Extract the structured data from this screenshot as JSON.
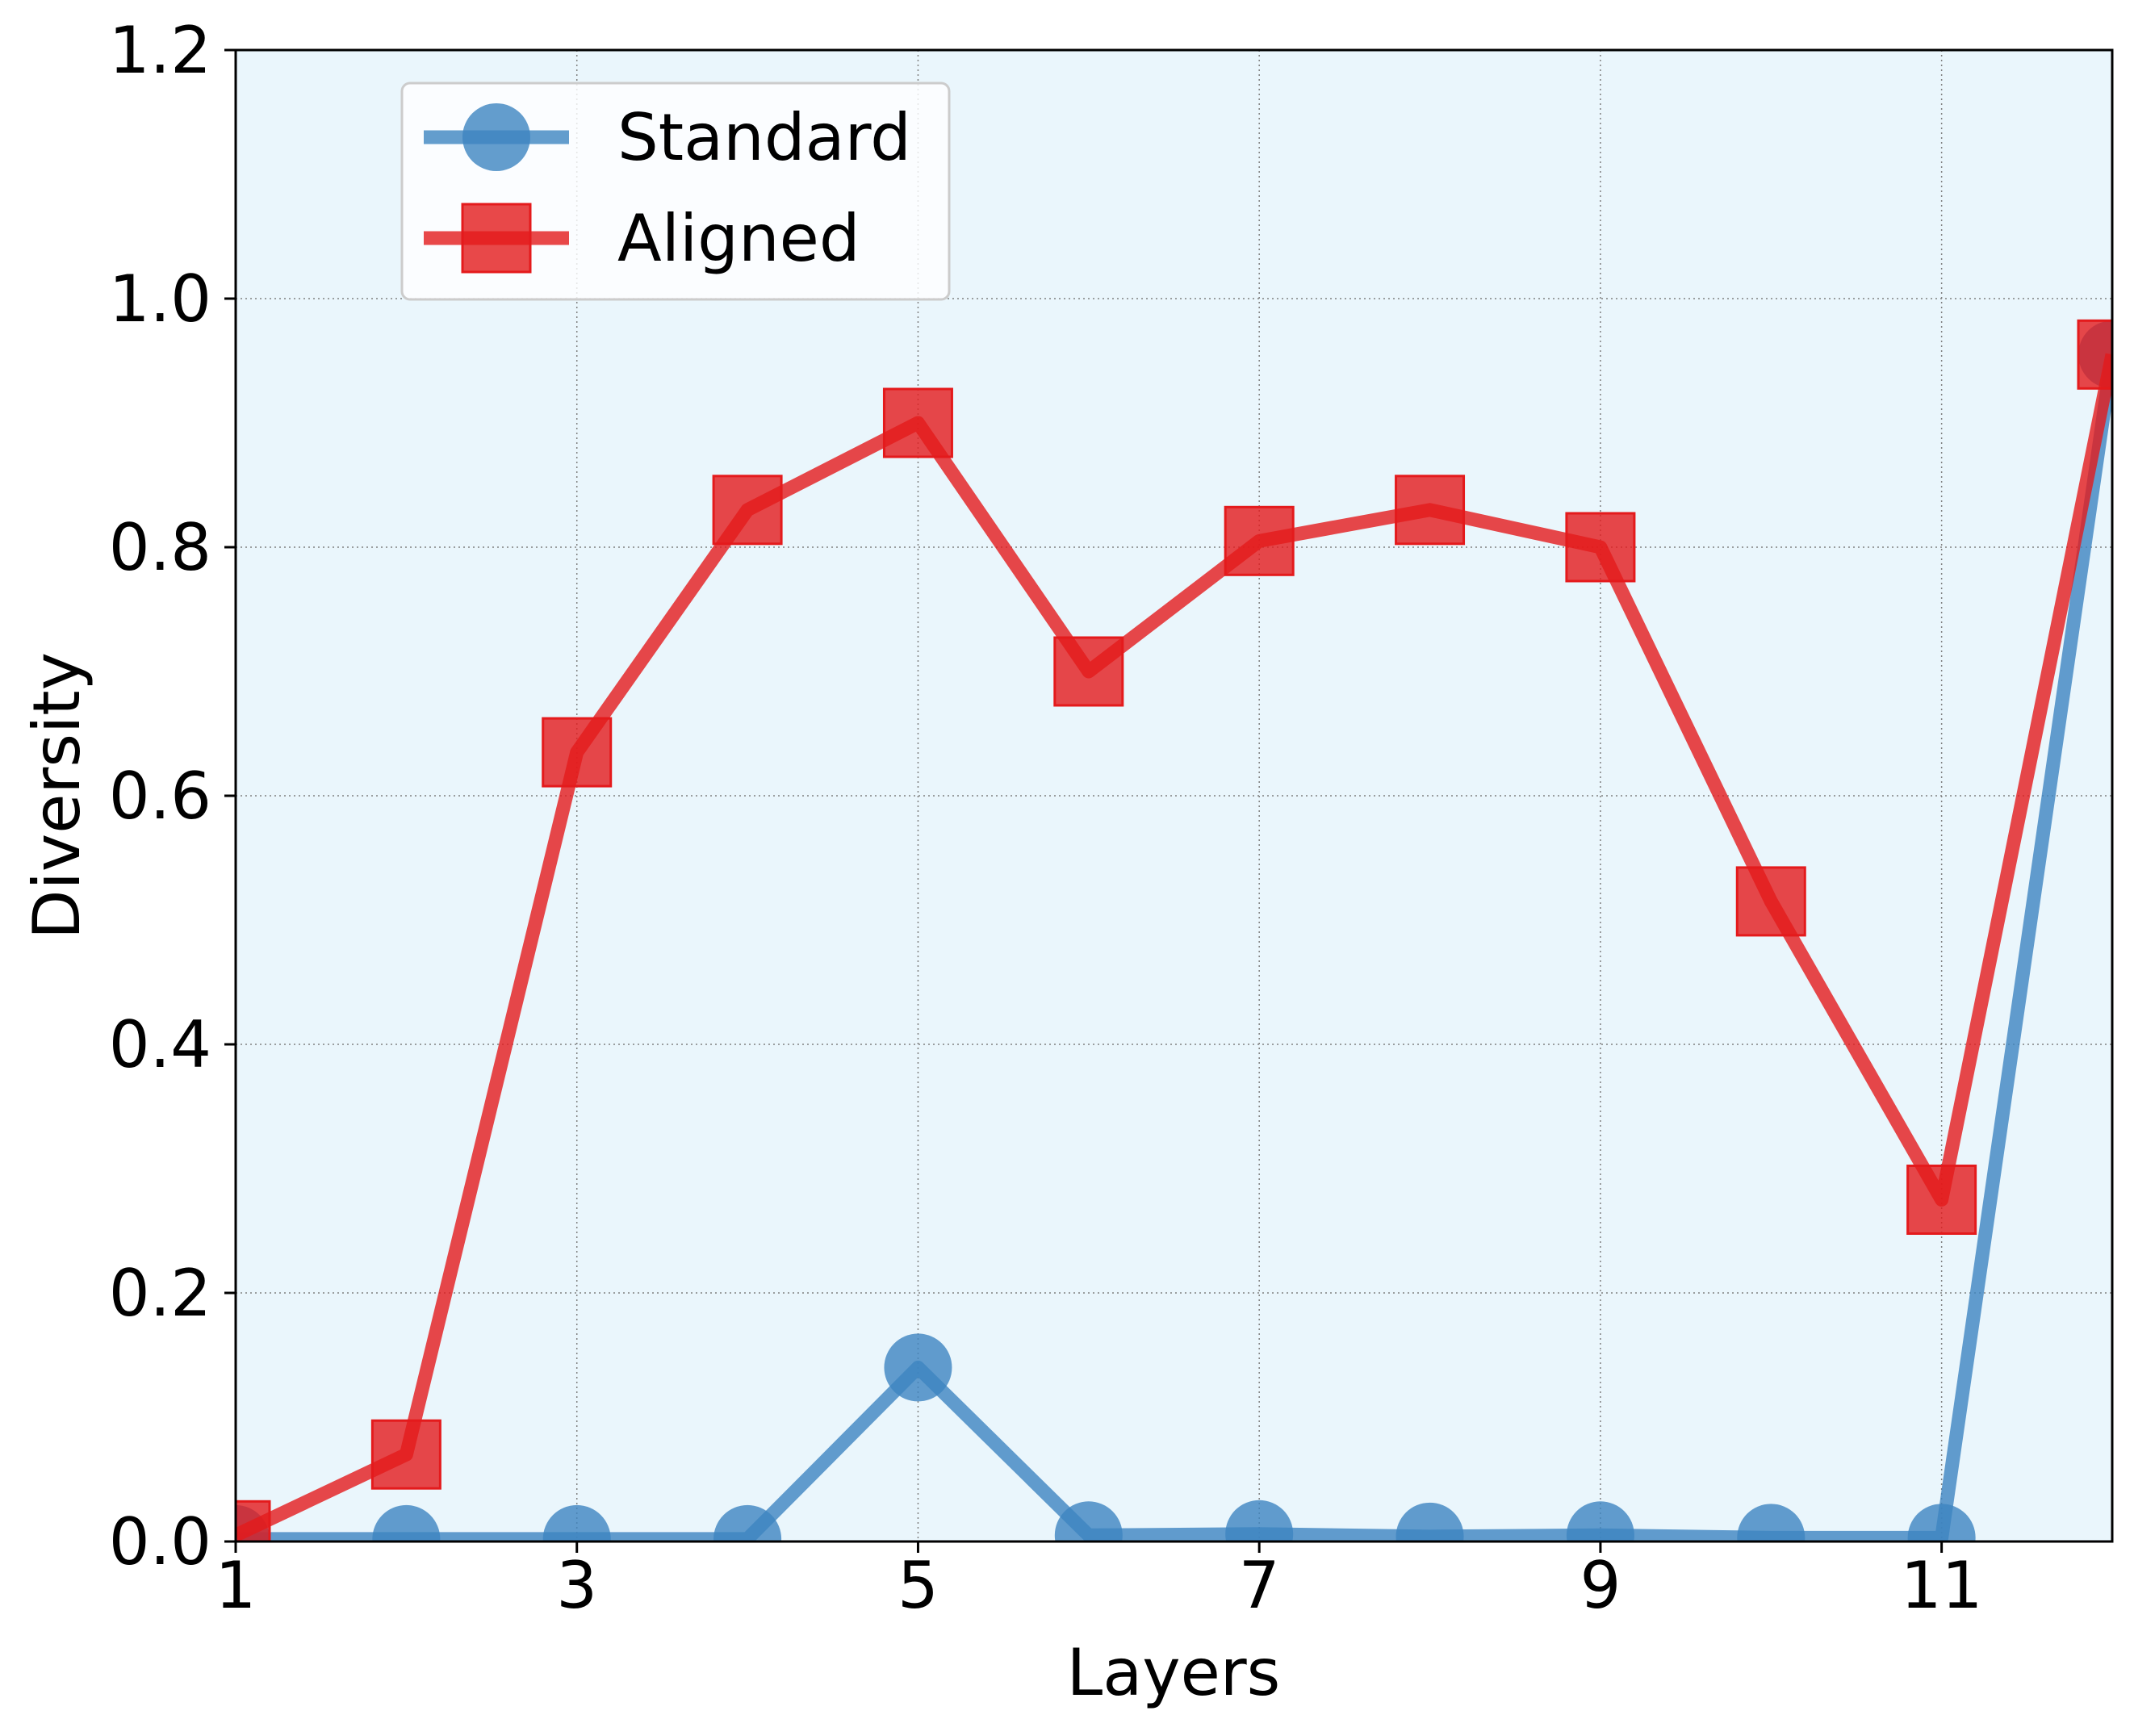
{
  "chart_data": {
    "type": "line",
    "title": "",
    "xlabel": "Layers",
    "ylabel": "Diversity",
    "xlim": [
      1,
      12
    ],
    "ylim": [
      0,
      1.2
    ],
    "x_ticks": [
      "1",
      "3",
      "5",
      "7",
      "9",
      "11"
    ],
    "y_ticks": [
      "0.0",
      "0.2",
      "0.4",
      "0.6",
      "0.8",
      "1.0",
      "1.2"
    ],
    "grid": true,
    "legend_position": "top-left",
    "background_color": "#eaf6fc",
    "x": [
      1,
      2,
      3,
      4,
      5,
      6,
      7,
      8,
      9,
      10,
      11,
      12
    ],
    "series": [
      {
        "name": "Standard",
        "color": "#3d85c0",
        "marker": "circle",
        "values": [
          0.002,
          0.002,
          0.002,
          0.002,
          0.14,
          0.005,
          0.006,
          0.004,
          0.005,
          0.003,
          0.003,
          0.955
        ]
      },
      {
        "name": "Aligned",
        "color": "#e41a1c",
        "marker": "square",
        "values": [
          0.005,
          0.07,
          0.635,
          0.83,
          0.9,
          0.7,
          0.805,
          0.83,
          0.8,
          0.515,
          0.275,
          0.955
        ]
      }
    ]
  }
}
